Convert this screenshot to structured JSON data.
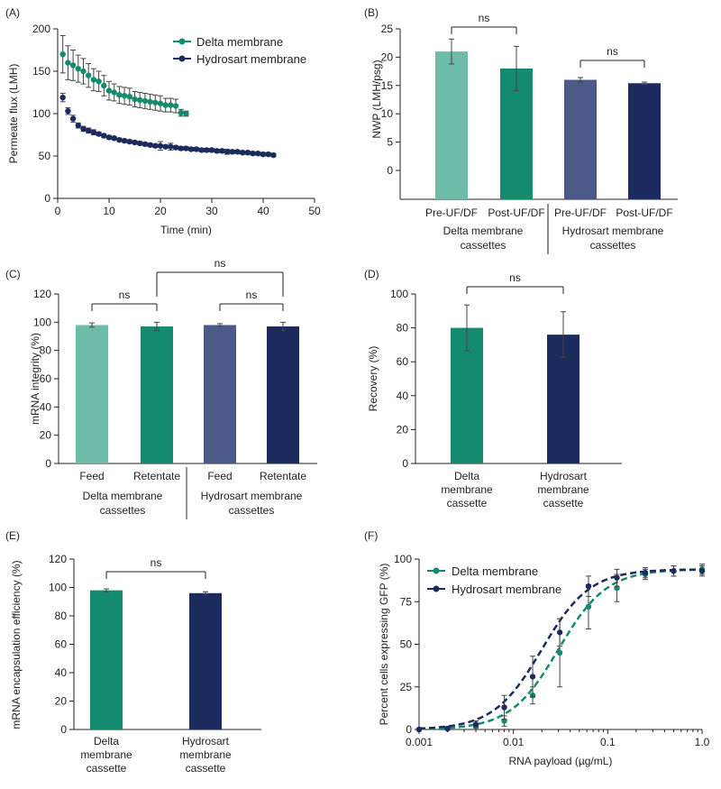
{
  "colors": {
    "delta": "#148a6e",
    "hydro": "#1c2b5e",
    "delta_light": "#6dbcaa",
    "hydro_light": "#4b5a87",
    "axis": "#222222",
    "error": "#444444"
  },
  "chart_data": [
    {
      "panel": "(A)",
      "type": "scatter",
      "title": "",
      "xlabel": "Time (min)",
      "ylabel": "Permeate flux (LMH)",
      "xlim": [
        0,
        50
      ],
      "ylim": [
        0,
        200
      ],
      "xticks": [
        "0",
        "10",
        "20",
        "30",
        "40",
        "50"
      ],
      "yticks": [
        "0",
        "50",
        "100",
        "150",
        "200"
      ],
      "legend": [
        "Delta membrane",
        "Hydrosart membrane"
      ],
      "series": [
        {
          "name": "Delta membrane",
          "x": [
            1,
            2,
            3,
            4,
            5,
            6,
            7,
            8,
            9,
            10,
            11,
            12,
            13,
            14,
            15,
            16,
            17,
            18,
            19,
            20,
            21,
            22,
            23,
            24,
            25
          ],
          "y": [
            170,
            160,
            157,
            153,
            150,
            145,
            140,
            138,
            133,
            127,
            125,
            122,
            121,
            120,
            117,
            116,
            115,
            114,
            113,
            112,
            110,
            110,
            109,
            101,
            100
          ],
          "err": [
            22,
            20,
            18,
            16,
            15,
            14,
            13,
            12,
            12,
            11,
            10,
            10,
            10,
            10,
            9,
            9,
            9,
            9,
            9,
            9,
            8,
            8,
            8,
            4,
            3
          ]
        },
        {
          "name": "Hydrosart membrane",
          "x": [
            1,
            2,
            3,
            4,
            5,
            6,
            7,
            8,
            9,
            10,
            11,
            12,
            13,
            14,
            15,
            16,
            17,
            18,
            19,
            20,
            21,
            22,
            23,
            24,
            25,
            26,
            27,
            28,
            29,
            30,
            31,
            32,
            33,
            34,
            35,
            36,
            37,
            38,
            39,
            40,
            41,
            42
          ],
          "y": [
            119,
            103,
            94,
            86,
            82,
            80,
            78,
            76,
            74,
            72,
            71,
            69,
            68,
            67,
            66,
            65,
            64,
            63,
            62,
            62,
            61,
            61,
            60,
            59,
            59,
            58,
            58,
            57,
            57,
            57,
            56,
            56,
            55,
            55,
            55,
            54,
            54,
            53,
            53,
            52,
            52,
            51
          ],
          "err": [
            5,
            4,
            4,
            3,
            3,
            3,
            3,
            2,
            2,
            2,
            2,
            2,
            2,
            2,
            2,
            2,
            2,
            2,
            2,
            5,
            2,
            4,
            2,
            2,
            2,
            2,
            2,
            2,
            2,
            2,
            2,
            2,
            3,
            2,
            2,
            2,
            2,
            2,
            2,
            2,
            2,
            2
          ]
        }
      ]
    },
    {
      "panel": "(B)",
      "type": "bar",
      "ylabel": "NWP (LMH/psg)",
      "ylim": [
        -5,
        25
      ],
      "yticks": [
        "0",
        "5",
        "10",
        "15",
        "20",
        "25"
      ],
      "categories": [
        "Pre-UF/DF",
        "Post-UF/DF",
        "Pre-UF/DF",
        "Post-UF/DF"
      ],
      "values": [
        21,
        18,
        16,
        15.4
      ],
      "errors": [
        2.2,
        3.9,
        0.4,
        0.2
      ],
      "groups": [
        "Delta membrane\ncassettes",
        "Hydrosart membrane\ncassettes"
      ],
      "significance": [
        {
          "from": 0,
          "to": 1,
          "label": "ns"
        },
        {
          "from": 2,
          "to": 3,
          "label": "ns"
        }
      ]
    },
    {
      "panel": "(C)",
      "type": "bar",
      "ylabel": "mRNA integrity (%)",
      "ylim": [
        0,
        120
      ],
      "yticks": [
        "0",
        "20",
        "40",
        "60",
        "80",
        "100",
        "120"
      ],
      "categories": [
        "Feed",
        "Retentate",
        "Feed",
        "Retentate"
      ],
      "values": [
        98,
        97,
        98,
        97
      ],
      "errors": [
        1.5,
        3,
        1,
        3
      ],
      "groups": [
        "Delta membrane\ncassettes",
        "Hydrosart membrane\ncassettes"
      ],
      "significance": [
        {
          "from": 0,
          "to": 1,
          "label": "ns"
        },
        {
          "from": 2,
          "to": 3,
          "label": "ns"
        },
        {
          "from": 1,
          "to": 3,
          "label": "ns"
        }
      ]
    },
    {
      "panel": "(D)",
      "type": "bar",
      "ylabel": "Recovery (%)",
      "ylim": [
        0,
        100
      ],
      "yticks": [
        "0",
        "20",
        "40",
        "60",
        "80",
        "100"
      ],
      "categories": [
        "Delta\nmembrane\ncassette",
        "Hydrosart\nmembrane\ncassette"
      ],
      "values": [
        80,
        76
      ],
      "errors": [
        13.5,
        13.5
      ],
      "significance": [
        {
          "from": 0,
          "to": 1,
          "label": "ns"
        }
      ]
    },
    {
      "panel": "(E)",
      "type": "bar",
      "ylabel": "mRNA encapsulation efficiency (%)",
      "ylim": [
        0,
        120
      ],
      "yticks": [
        "0",
        "20",
        "40",
        "60",
        "80",
        "100",
        "120"
      ],
      "categories": [
        "Delta\nmembrane\ncassette",
        "Hydrosart\nmembrane\ncassette"
      ],
      "values": [
        98,
        96
      ],
      "errors": [
        1,
        1
      ],
      "significance": [
        {
          "from": 0,
          "to": 1,
          "label": "ns"
        }
      ]
    },
    {
      "panel": "(F)",
      "type": "line",
      "xscale": "log",
      "xlabel": "RNA payload (µg/mL)",
      "ylabel": "Percent cells expressing GFP (%)",
      "xlim": [
        0.001,
        1.0
      ],
      "ylim": [
        0,
        100
      ],
      "xticks": [
        "0.001",
        "0.01",
        "0.1",
        "1.0"
      ],
      "yticks": [
        "0",
        "25",
        "50",
        "75",
        "100"
      ],
      "legend": [
        "Delta membrane",
        "Hydrosart membrane"
      ],
      "series": [
        {
          "name": "Delta membrane",
          "x": [
            0.001,
            0.002,
            0.004,
            0.008,
            0.016,
            0.031,
            0.0625,
            0.125,
            0.25,
            0.5,
            1.0
          ],
          "y": [
            0,
            0.5,
            2,
            5,
            20,
            45,
            72,
            83,
            91,
            93,
            94
          ],
          "err": [
            0.3,
            0.5,
            1,
            3,
            5,
            20,
            13,
            8,
            3,
            3,
            3
          ],
          "ec50": 0.03,
          "hill": 1.7
        },
        {
          "name": "Hydrosart membrane",
          "x": [
            0.001,
            0.002,
            0.004,
            0.008,
            0.016,
            0.031,
            0.0625,
            0.125,
            0.25,
            0.5,
            1.0
          ],
          "y": [
            0,
            0.5,
            3,
            13,
            31,
            57,
            84,
            89,
            92,
            93,
            93
          ],
          "err": [
            0.3,
            0.5,
            2,
            7,
            12,
            8,
            6,
            5,
            3,
            3,
            3
          ],
          "ec50": 0.02,
          "hill": 1.7
        }
      ]
    }
  ]
}
